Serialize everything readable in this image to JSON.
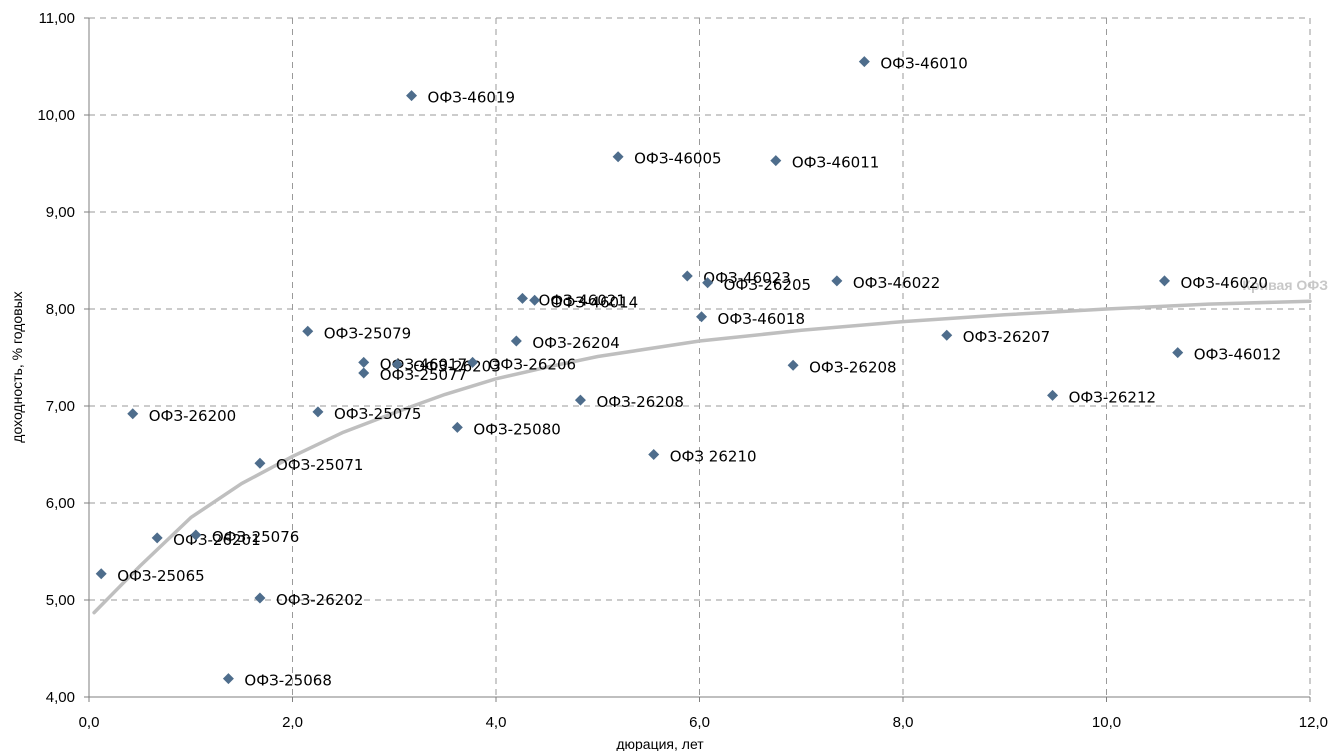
{
  "chart_data": {
    "type": "scatter",
    "xlabel": "дюрация, лет",
    "ylabel": "доходность, % годовых",
    "xlim": [
      0,
      12
    ],
    "ylim": [
      4,
      11
    ],
    "x_ticks": [
      0,
      2,
      4,
      6,
      8,
      10,
      12
    ],
    "y_ticks": [
      4,
      5,
      6,
      7,
      8,
      9,
      10,
      11
    ],
    "x_tick_labels": [
      "0,0",
      "2,0",
      "4,0",
      "6,0",
      "8,0",
      "10,0",
      "12,0"
    ],
    "y_tick_labels": [
      "4,00",
      "5,00",
      "6,00",
      "7,00",
      "8,00",
      "9,00",
      "10,00",
      "11,00"
    ],
    "grid": true,
    "point_color": "#4e6d8c",
    "curve_color": "#bfbfbf",
    "points": [
      {
        "label": "ОФЗ-46010",
        "x": 7.62,
        "y": 10.55
      },
      {
        "label": "ОФЗ-46019",
        "x": 3.17,
        "y": 10.2
      },
      {
        "label": "ОФЗ-46005",
        "x": 5.2,
        "y": 9.57
      },
      {
        "label": "ОФЗ-46011",
        "x": 6.75,
        "y": 9.53
      },
      {
        "label": "ОФЗ-46023",
        "x": 5.88,
        "y": 8.34
      },
      {
        "label": "ОФЗ-26205",
        "x": 6.08,
        "y": 8.27
      },
      {
        "label": "ОФЗ-46022",
        "x": 7.35,
        "y": 8.29
      },
      {
        "label": "ОФЗ-46020",
        "x": 10.57,
        "y": 8.29
      },
      {
        "label": "ОФЗ-46021",
        "x": 4.26,
        "y": 8.11
      },
      {
        "label": "ОФЗ-46014",
        "x": 4.38,
        "y": 8.09
      },
      {
        "label": "ОФЗ-46018",
        "x": 6.02,
        "y": 7.92
      },
      {
        "label": "ОФЗ-25079",
        "x": 2.15,
        "y": 7.77
      },
      {
        "label": "ОФЗ-26207",
        "x": 8.43,
        "y": 7.73
      },
      {
        "label": "ОФЗ-26204",
        "x": 4.2,
        "y": 7.67
      },
      {
        "label": "ОФЗ-46012",
        "x": 10.7,
        "y": 7.55
      },
      {
        "label": "ОФЗ-46017",
        "x": 2.7,
        "y": 7.45
      },
      {
        "label": "ОФЗ-26203",
        "x": 3.03,
        "y": 7.43
      },
      {
        "label": "ОФЗ-26206",
        "x": 3.77,
        "y": 7.45
      },
      {
        "label": "ОФЗ-26208",
        "x": 6.92,
        "y": 7.42
      },
      {
        "label": "ОФЗ-25077",
        "x": 2.7,
        "y": 7.34
      },
      {
        "label": "ОФЗ-26212",
        "x": 9.47,
        "y": 7.11
      },
      {
        "label": "ОФЗ-26208",
        "x": 4.83,
        "y": 7.06
      },
      {
        "label": "ОФЗ-25075",
        "x": 2.25,
        "y": 6.94
      },
      {
        "label": "ОФЗ-26200",
        "x": 0.43,
        "y": 6.92
      },
      {
        "label": "ОФЗ-25080",
        "x": 3.62,
        "y": 6.78
      },
      {
        "label": "ОФЗ 26210",
        "x": 5.55,
        "y": 6.5
      },
      {
        "label": "ОФЗ-25071",
        "x": 1.68,
        "y": 6.41
      },
      {
        "label": "ОФЗ-26201",
        "x": 0.67,
        "y": 5.64
      },
      {
        "label": "ОФЗ-25076",
        "x": 1.05,
        "y": 5.67
      },
      {
        "label": "ОФЗ-25065",
        "x": 0.12,
        "y": 5.27
      },
      {
        "label": "ОФЗ-26202",
        "x": 1.68,
        "y": 5.02
      },
      {
        "label": "ОФЗ-25068",
        "x": 1.37,
        "y": 4.19
      }
    ],
    "curve": {
      "label": "Кривая ОФЗ",
      "x": [
        0.05,
        0.5,
        1.0,
        1.5,
        2.0,
        2.5,
        3.0,
        3.5,
        4.0,
        4.5,
        5.0,
        6.0,
        7.0,
        8.0,
        9.0,
        10.0,
        11.0,
        12.0
      ],
      "y": [
        4.87,
        5.35,
        5.85,
        6.2,
        6.48,
        6.73,
        6.93,
        7.12,
        7.28,
        7.4,
        7.51,
        7.67,
        7.78,
        7.87,
        7.94,
        8.0,
        8.05,
        8.08
      ]
    }
  }
}
